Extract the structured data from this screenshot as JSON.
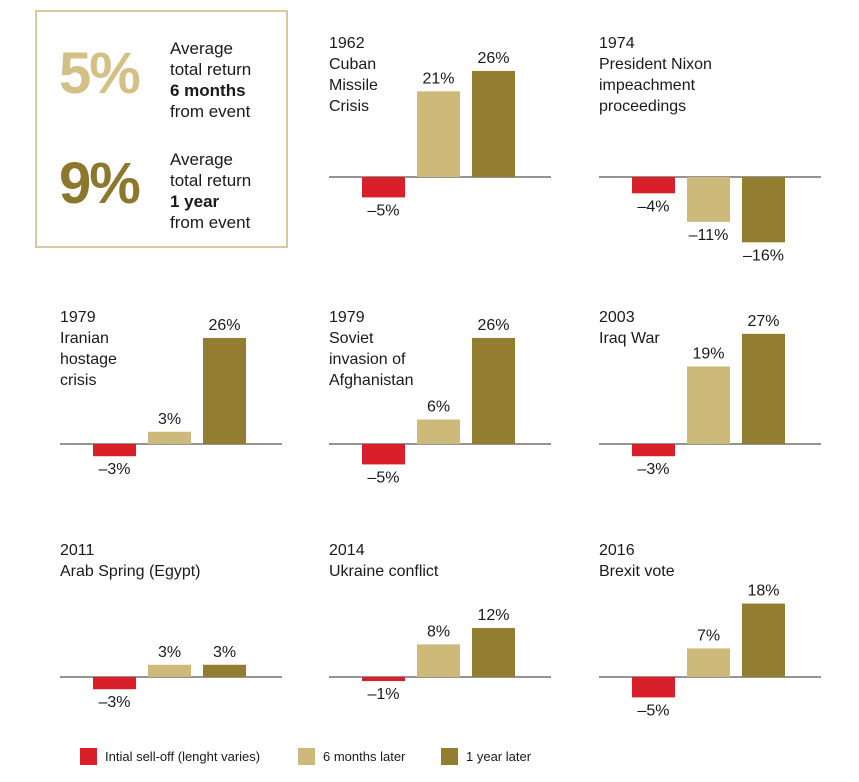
{
  "summary": {
    "six_month": {
      "value": "5%",
      "line1": "Average",
      "line2": "total return",
      "bold": "6 months",
      "line4": "from event"
    },
    "one_year": {
      "value": "9%",
      "line1": "Average",
      "line2": "total return",
      "bold": "1 year",
      "line4": "from event"
    }
  },
  "colors": {
    "selloff": "#d9202a",
    "six_months": "#cdb979",
    "one_year": "#937d31",
    "box_border": "#d8c99a"
  },
  "legend": [
    {
      "label": "Intial sell-off (lenght varies)",
      "color": "#d9202a"
    },
    {
      "label": "6 months later",
      "color": "#cdb979"
    },
    {
      "label": "1 year later",
      "color": "#937d31"
    }
  ],
  "chart_data": [
    {
      "type": "bar",
      "title": [
        "1962",
        "Cuban",
        "Missile",
        "Crisis"
      ],
      "categories": [
        "Intial sell-off (lenght varies)",
        "6 months later",
        "1 year later"
      ],
      "values": [
        -5,
        21,
        26
      ],
      "labels": [
        "–5%",
        "21%",
        "26%"
      ]
    },
    {
      "type": "bar",
      "title": [
        "1974",
        "President Nixon",
        "impeachment",
        "proceedings"
      ],
      "categories": [
        "Intial sell-off (lenght varies)",
        "6 months later",
        "1 year later"
      ],
      "values": [
        -4,
        -11,
        -16
      ],
      "labels": [
        "–4%",
        "–11%",
        "–16%"
      ]
    },
    {
      "type": "bar",
      "title": [
        "1979",
        "Iranian",
        "hostage",
        "crisis"
      ],
      "categories": [
        "Intial sell-off (lenght varies)",
        "6 months later",
        "1 year later"
      ],
      "values": [
        -3,
        3,
        26
      ],
      "labels": [
        "–3%",
        "3%",
        "26%"
      ]
    },
    {
      "type": "bar",
      "title": [
        "1979",
        "Soviet",
        "invasion of",
        "Afghanistan"
      ],
      "categories": [
        "Intial sell-off (lenght varies)",
        "6 months later",
        "1 year later"
      ],
      "values": [
        -5,
        6,
        26
      ],
      "labels": [
        "–5%",
        "6%",
        "26%"
      ]
    },
    {
      "type": "bar",
      "title": [
        "2003",
        "Iraq War"
      ],
      "categories": [
        "Intial sell-off (lenght varies)",
        "6 months later",
        "1 year later"
      ],
      "values": [
        -3,
        19,
        27
      ],
      "labels": [
        "–3%",
        "19%",
        "27%"
      ]
    },
    {
      "type": "bar",
      "title": [
        "2011",
        "Arab Spring (Egypt)"
      ],
      "categories": [
        "Intial sell-off (lenght varies)",
        "6 months later",
        "1 year later"
      ],
      "values": [
        -3,
        3,
        3
      ],
      "labels": [
        "–3%",
        "3%",
        "3%"
      ]
    },
    {
      "type": "bar",
      "title": [
        "2014",
        "Ukraine conflict"
      ],
      "categories": [
        "Intial sell-off (lenght varies)",
        "6 months later",
        "1 year later"
      ],
      "values": [
        -1,
        8,
        12
      ],
      "labels": [
        "–1%",
        "8%",
        "12%"
      ]
    },
    {
      "type": "bar",
      "title": [
        "2016",
        "Brexit vote"
      ],
      "categories": [
        "Intial sell-off (lenght varies)",
        "6 months later",
        "1 year later"
      ],
      "values": [
        -5,
        7,
        18
      ],
      "labels": [
        "–5%",
        "7%",
        "18%"
      ]
    }
  ]
}
